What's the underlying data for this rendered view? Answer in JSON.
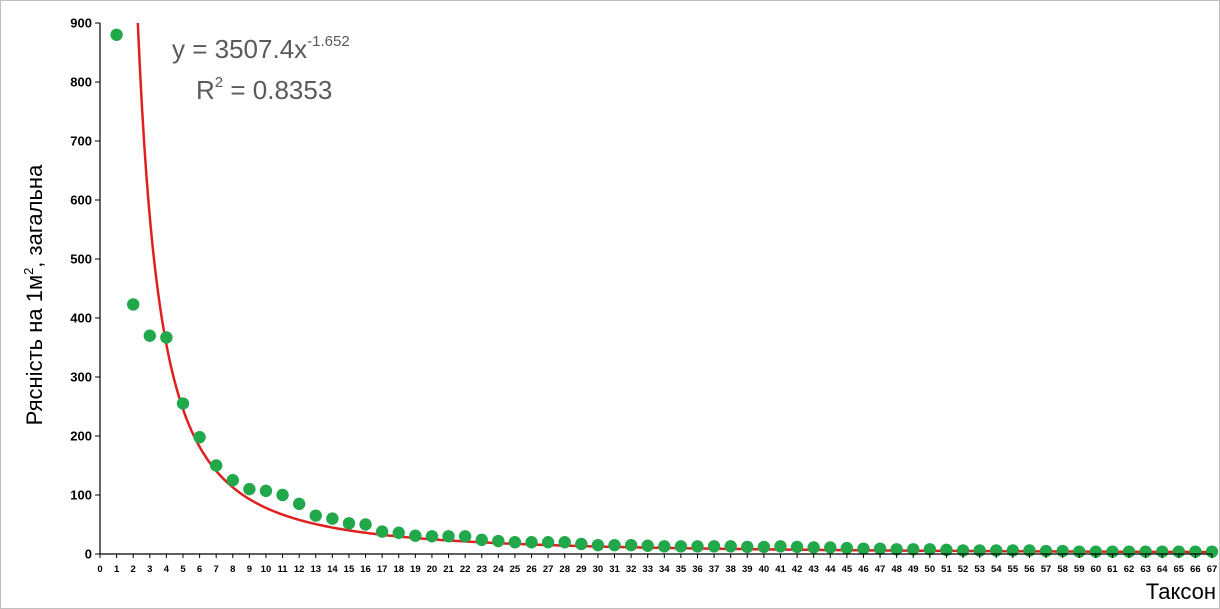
{
  "chart_data": {
    "type": "scatter",
    "xlabel": "Таксон",
    "ylabel": "Рясність на 1м², загальна",
    "xlim": [
      0,
      67
    ],
    "ylim": [
      0,
      900
    ],
    "yticks": [
      0,
      100,
      200,
      300,
      400,
      500,
      600,
      700,
      800,
      900
    ],
    "xticks": [
      0,
      1,
      2,
      3,
      4,
      5,
      6,
      7,
      8,
      9,
      10,
      11,
      12,
      13,
      14,
      15,
      16,
      17,
      18,
      19,
      20,
      21,
      22,
      23,
      24,
      25,
      26,
      27,
      28,
      29,
      30,
      31,
      32,
      33,
      34,
      35,
      36,
      37,
      38,
      39,
      40,
      41,
      42,
      43,
      44,
      45,
      46,
      47,
      48,
      49,
      50,
      51,
      52,
      53,
      54,
      55,
      56,
      57,
      58,
      59,
      60,
      61,
      62,
      63,
      64,
      65,
      66,
      67
    ],
    "grid": false,
    "series": [
      {
        "kind": "points",
        "color": "#21a84a",
        "x": [
          1,
          2,
          3,
          4,
          5,
          6,
          7,
          8,
          9,
          10,
          11,
          12,
          13,
          14,
          15,
          16,
          17,
          18,
          19,
          20,
          21,
          22,
          23,
          24,
          25,
          26,
          27,
          28,
          29,
          30,
          31,
          32,
          33,
          34,
          35,
          36,
          37,
          38,
          39,
          40,
          41,
          42,
          43,
          44,
          45,
          46,
          47,
          48,
          49,
          50,
          51,
          52,
          53,
          54,
          55,
          56,
          57,
          58,
          59,
          60,
          61,
          62,
          63,
          64,
          65,
          66,
          67
        ],
        "y": [
          880,
          423,
          370,
          367,
          255,
          198,
          150,
          125,
          110,
          107,
          100,
          85,
          65,
          60,
          52,
          50,
          38,
          36,
          31,
          30,
          30,
          30,
          24,
          22,
          20,
          20,
          20,
          20,
          17,
          15,
          15,
          15,
          14,
          13,
          13,
          13,
          13,
          13,
          12,
          12,
          13,
          12,
          11,
          11,
          10,
          9,
          9,
          8,
          8,
          8,
          7,
          6,
          6,
          6,
          6,
          6,
          5,
          5,
          4,
          4,
          4,
          4,
          4,
          4,
          4,
          4,
          4
        ]
      },
      {
        "kind": "trendline",
        "color": "#e02020",
        "model": "power",
        "a": 3507.4,
        "b": -1.652
      }
    ],
    "annotations": {
      "equation_base": "y = 3507.4x",
      "equation_exp": "-1.652",
      "r2_base": "R",
      "r2_exp": "2",
      "r2_value": " = 0.8353"
    }
  }
}
